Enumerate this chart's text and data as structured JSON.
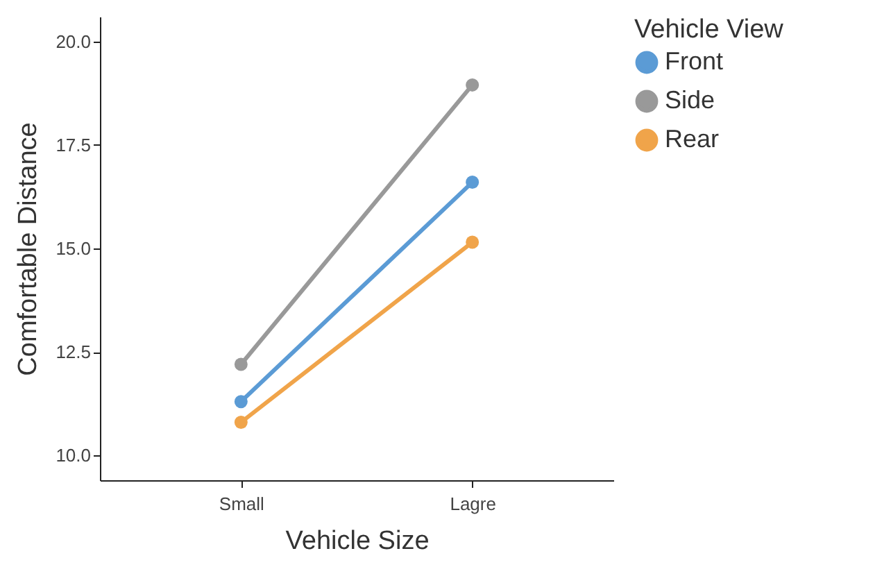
{
  "chart_data": {
    "type": "line",
    "xlabel": "Vehicle Size",
    "ylabel": "Comfortable Distance",
    "legend_title": "Vehicle View",
    "categories": [
      "Small",
      "Lagre"
    ],
    "series": [
      {
        "name": "Front",
        "color": "#5b9bd5",
        "values": [
          11.3,
          16.6
        ]
      },
      {
        "name": "Side",
        "color": "#999999",
        "values": [
          12.2,
          18.95
        ]
      },
      {
        "name": "Rear",
        "color": "#f0a44a",
        "values": [
          10.8,
          15.15
        ]
      }
    ],
    "ylim": [
      9.4,
      20.6
    ],
    "yticks": [
      {
        "value": 10,
        "label": "10.0"
      },
      {
        "value": 12.5,
        "label": "12.5"
      },
      {
        "value": 15,
        "label": "15.0"
      },
      {
        "value": 17.5,
        "label": "17.5"
      },
      {
        "value": 20,
        "label": "20.0"
      }
    ],
    "grid": false,
    "legend": "right",
    "marker": "circle",
    "line_style": "solid"
  }
}
